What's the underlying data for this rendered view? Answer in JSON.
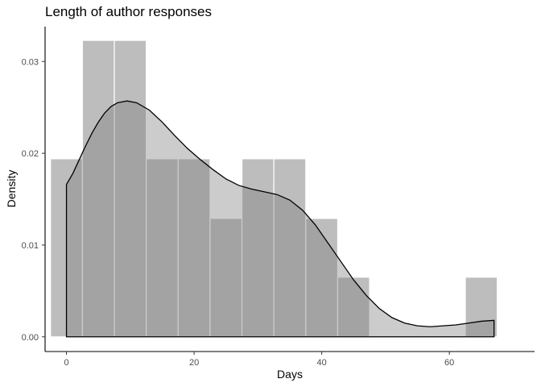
{
  "chart_data": {
    "type": "histogram",
    "title": "Length of author responses",
    "xlabel": "Days",
    "ylabel": "Density",
    "xlim": [
      -3.35,
      73.35
    ],
    "ylim": [
      -0.0016,
      0.0338
    ],
    "x_ticks": [
      0,
      20,
      40,
      60
    ],
    "y_ticks": [
      0,
      0.01,
      0.02,
      0.03
    ],
    "x_tick_labels": [
      "0",
      "20",
      "40",
      "60"
    ],
    "y_tick_labels": [
      "0.00",
      "0.01",
      "0.02",
      "0.03"
    ],
    "bin_width": 5,
    "bins": [
      {
        "start": -2.5,
        "end": 2.5,
        "density": 0.0194
      },
      {
        "start": 2.5,
        "end": 7.5,
        "density": 0.0323
      },
      {
        "start": 7.5,
        "end": 12.5,
        "density": 0.0323
      },
      {
        "start": 12.5,
        "end": 17.5,
        "density": 0.0194
      },
      {
        "start": 17.5,
        "end": 22.5,
        "density": 0.0194
      },
      {
        "start": 22.5,
        "end": 27.5,
        "density": 0.0129
      },
      {
        "start": 27.5,
        "end": 32.5,
        "density": 0.0194
      },
      {
        "start": 32.5,
        "end": 37.5,
        "density": 0.0194
      },
      {
        "start": 37.5,
        "end": 42.5,
        "density": 0.0129
      },
      {
        "start": 42.5,
        "end": 47.5,
        "density": 0.0065
      },
      {
        "start": 47.5,
        "end": 52.5,
        "density": 0
      },
      {
        "start": 52.5,
        "end": 57.5,
        "density": 0
      },
      {
        "start": 57.5,
        "end": 62.5,
        "density": 0
      },
      {
        "start": 62.5,
        "end": 67.5,
        "density": 0.0065
      }
    ],
    "density_curve": [
      {
        "x": 0,
        "y": 0.0166
      },
      {
        "x": 1,
        "y": 0.0178
      },
      {
        "x": 2,
        "y": 0.0193
      },
      {
        "x": 3,
        "y": 0.0208
      },
      {
        "x": 4,
        "y": 0.0222
      },
      {
        "x": 5,
        "y": 0.0234
      },
      {
        "x": 6,
        "y": 0.0244
      },
      {
        "x": 7,
        "y": 0.0251
      },
      {
        "x": 8,
        "y": 0.0255
      },
      {
        "x": 9.5,
        "y": 0.0257
      },
      {
        "x": 11,
        "y": 0.0255
      },
      {
        "x": 13,
        "y": 0.0247
      },
      {
        "x": 15,
        "y": 0.0234
      },
      {
        "x": 17,
        "y": 0.0219
      },
      {
        "x": 19,
        "y": 0.0205
      },
      {
        "x": 21,
        "y": 0.0193
      },
      {
        "x": 23,
        "y": 0.0182
      },
      {
        "x": 25,
        "y": 0.0172
      },
      {
        "x": 27,
        "y": 0.0165
      },
      {
        "x": 29,
        "y": 0.0161
      },
      {
        "x": 31,
        "y": 0.0158
      },
      {
        "x": 33,
        "y": 0.0155
      },
      {
        "x": 35,
        "y": 0.0149
      },
      {
        "x": 37,
        "y": 0.0138
      },
      {
        "x": 39,
        "y": 0.0122
      },
      {
        "x": 41,
        "y": 0.0102
      },
      {
        "x": 43,
        "y": 0.0082
      },
      {
        "x": 45,
        "y": 0.0062
      },
      {
        "x": 47,
        "y": 0.0045
      },
      {
        "x": 49,
        "y": 0.0031
      },
      {
        "x": 51,
        "y": 0.0021
      },
      {
        "x": 53,
        "y": 0.0015
      },
      {
        "x": 55,
        "y": 0.0012
      },
      {
        "x": 57,
        "y": 0.0011
      },
      {
        "x": 59,
        "y": 0.0012
      },
      {
        "x": 61,
        "y": 0.0013
      },
      {
        "x": 63,
        "y": 0.0015
      },
      {
        "x": 65,
        "y": 0.0017
      },
      {
        "x": 67,
        "y": 0.0018
      }
    ],
    "colors": {
      "bar_fill": "#bdbdbd",
      "bar_outline": "#ffffff",
      "density_fill": "#787878",
      "density_line": "#000000"
    },
    "grid": false,
    "legend": "none"
  }
}
